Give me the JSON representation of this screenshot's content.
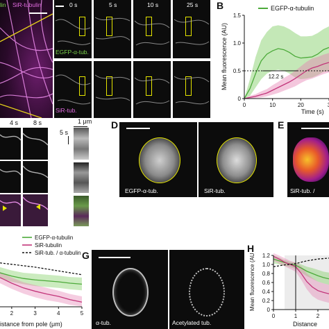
{
  "panels": {
    "A": {
      "label_egfp": "lin",
      "label_sir": "SiR-tubulin"
    },
    "Atime": {
      "times": [
        "0 s",
        "5 s",
        "10 s",
        "25 s"
      ],
      "row1_label": "EGFP-α-tub.",
      "row2_label": "SiR-tub."
    },
    "B": {
      "letter": "B",
      "legend": "EGFP-α-tubulin",
      "ylabel": "Mean fluorescence (AU)",
      "xlabel": "Time (s)",
      "yticks": [
        "0",
        "0.5",
        "1.0",
        "1.5"
      ],
      "xticks": [
        "0",
        "10",
        "20",
        "3"
      ],
      "annotation": "12.2 s"
    },
    "C": {
      "times": [
        "4 s",
        "8 s"
      ],
      "scale": "1 μm",
      "time_scale": "5 s"
    },
    "D": {
      "letter": "D",
      "left_label": "EGFP-α-tub.",
      "right_label": "SiR-tub."
    },
    "E": {
      "letter": "E",
      "label": "SiR-tub. /"
    },
    "F": {
      "legend": [
        "EGFP-α-tubulin",
        "SiR-tubulin",
        "SiR-tub. / α-tubulin"
      ],
      "xlabel": "istance from pole (μm)",
      "xticks": [
        "2",
        "3",
        "4",
        "5"
      ]
    },
    "G": {
      "letter": "G",
      "left_label": "α-tub.",
      "right_label": "Acetylated tub."
    },
    "H": {
      "letter": "H",
      "ylabel": "Mean fluorescence (AU)",
      "xlabel": "Distance",
      "yticks": [
        "0",
        "0.2",
        "0.4",
        "0.6",
        "0.8",
        "1.0",
        "1.2"
      ],
      "xticks": [
        "0",
        "1",
        "2"
      ]
    }
  },
  "chart_data": [
    {
      "type": "line",
      "title": "",
      "xlabel": "Time (s)",
      "ylabel": "Mean fluorescence (AU)",
      "xlim": [
        0,
        30
      ],
      "ylim": [
        0,
        1.5
      ],
      "threshold": 0.5,
      "x": [
        0,
        2,
        4,
        6,
        8,
        10,
        12,
        14,
        16,
        18,
        20,
        22,
        24,
        26,
        28,
        30
      ],
      "series": [
        {
          "name": "EGFP-α-tubulin",
          "values": [
            0,
            0.18,
            0.45,
            0.68,
            0.8,
            0.86,
            0.9,
            0.88,
            0.83,
            0.76,
            0.73,
            0.74,
            0.75,
            0.8,
            0.88,
            0.92
          ],
          "lower": [
            0,
            0.05,
            0.2,
            0.35,
            0.45,
            0.5,
            0.52,
            0.5,
            0.45,
            0.38,
            0.35,
            0.36,
            0.38,
            0.42,
            0.48,
            0.5
          ],
          "upper": [
            0,
            0.35,
            0.75,
            1.05,
            1.2,
            1.3,
            1.32,
            1.3,
            1.25,
            1.18,
            1.12,
            1.12,
            1.13,
            1.18,
            1.25,
            1.3
          ]
        },
        {
          "values": [
            0,
            0.02,
            0.04,
            0.07,
            0.1,
            0.15,
            0.2,
            0.25,
            0.3,
            0.36,
            0.43,
            0.5,
            0.55,
            0.58,
            0.62,
            0.65
          ],
          "lower": [
            0,
            0,
            0.01,
            0.02,
            0.04,
            0.07,
            0.1,
            0.14,
            0.18,
            0.22,
            0.28,
            0.33,
            0.36,
            0.4,
            0.44,
            0.47
          ],
          "upper": [
            0,
            0.05,
            0.08,
            0.13,
            0.17,
            0.24,
            0.3,
            0.37,
            0.43,
            0.5,
            0.58,
            0.66,
            0.72,
            0.75,
            0.79,
            0.82
          ]
        }
      ]
    },
    {
      "type": "line",
      "title": "",
      "xlabel": "Distance from pole (μm)",
      "ylabel": "",
      "xlim": [
        1.5,
        5
      ],
      "ylim": [
        0,
        1
      ],
      "x": [
        1.5,
        2,
        2.5,
        3,
        3.5,
        4,
        4.5,
        5
      ],
      "series": [
        {
          "name": "EGFP-α-tubulin",
          "values": [
            0.72,
            0.65,
            0.6,
            0.57,
            0.55,
            0.53,
            0.5,
            0.48
          ],
          "lower": [
            0.6,
            0.53,
            0.48,
            0.44,
            0.42,
            0.4,
            0.37,
            0.35
          ],
          "upper": [
            0.84,
            0.77,
            0.72,
            0.7,
            0.68,
            0.66,
            0.63,
            0.62
          ]
        },
        {
          "name": "SiR-tubulin",
          "values": [
            0.62,
            0.5,
            0.4,
            0.33,
            0.27,
            0.22,
            0.15,
            0.1
          ],
          "lower": [
            0.5,
            0.38,
            0.28,
            0.2,
            0.14,
            0.1,
            0.04,
            0.01
          ],
          "upper": [
            0.74,
            0.62,
            0.52,
            0.46,
            0.4,
            0.34,
            0.27,
            0.22
          ]
        },
        {
          "name": "SiR-tub. / α-tubulin",
          "values": [
            0.93,
            0.9,
            0.87,
            0.84,
            0.8,
            0.76,
            0.72,
            0.68
          ]
        }
      ]
    },
    {
      "type": "line",
      "title": "",
      "xlabel": "Distance",
      "ylabel": "Mean fluorescence (AU)",
      "xlim": [
        0,
        2.5
      ],
      "ylim": [
        0,
        1.2
      ],
      "x": [
        0,
        0.25,
        0.5,
        0.75,
        1,
        1.25,
        1.5,
        1.75,
        2,
        2.25,
        2.5
      ],
      "series": [
        {
          "values": [
            1.12,
            1.08,
            1.04,
            1.01,
            0.98,
            0.92,
            0.85,
            0.8,
            0.75,
            0.71,
            0.68
          ],
          "lower": [
            1.02,
            1.0,
            0.97,
            0.94,
            0.9,
            0.82,
            0.74,
            0.68,
            0.62,
            0.58,
            0.55
          ],
          "upper": [
            1.2,
            1.16,
            1.1,
            1.06,
            1.04,
            1.0,
            0.95,
            0.92,
            0.88,
            0.84,
            0.82
          ]
        },
        {
          "values": [
            1.18,
            1.12,
            1.05,
            1.0,
            0.95,
            0.8,
            0.62,
            0.5,
            0.42,
            0.38,
            0.35
          ],
          "lower": [
            1.08,
            1.02,
            0.96,
            0.9,
            0.84,
            0.66,
            0.45,
            0.3,
            0.22,
            0.18,
            0.15
          ],
          "upper": [
            1.25,
            1.2,
            1.14,
            1.08,
            1.04,
            0.96,
            0.8,
            0.7,
            0.62,
            0.58,
            0.55
          ]
        },
        {
          "values": [
            0.95,
            0.97,
            0.99,
            1.0,
            1.02,
            1.05,
            1.08,
            1.1,
            1.12,
            1.13,
            1.14
          ]
        }
      ]
    }
  ]
}
